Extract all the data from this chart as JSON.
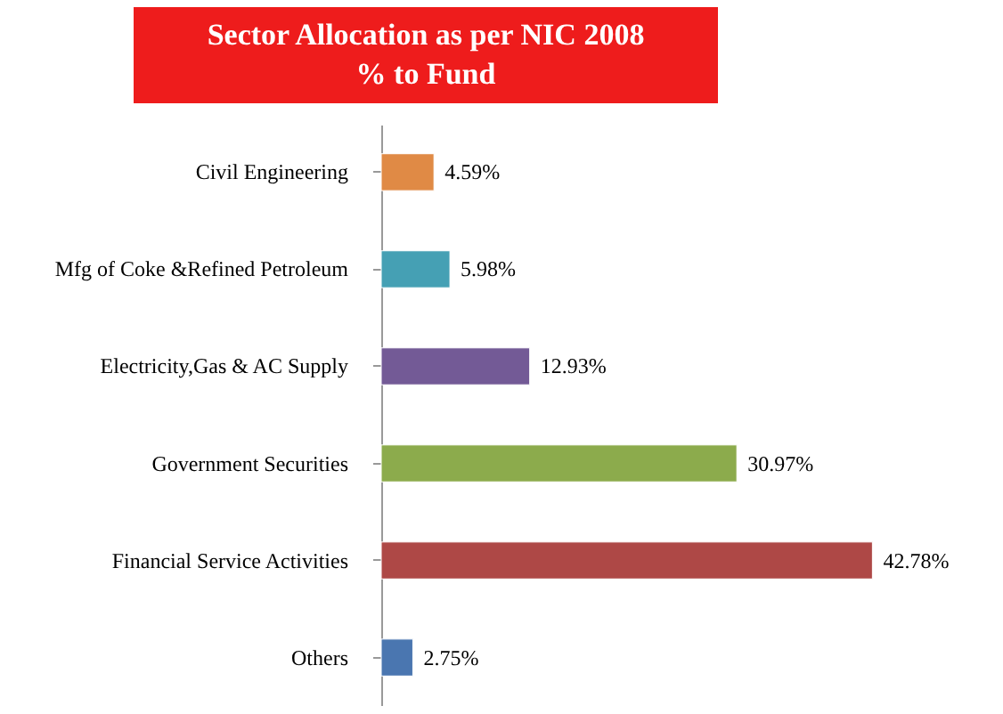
{
  "chart_data": {
    "type": "bar",
    "orientation": "horizontal",
    "title": "Sector Allocation as per NIC 2008\n% to Fund",
    "categories": [
      "Civil Engineering",
      "Mfg of Coke &Refined Petroleum",
      "Electricity,Gas & AC Supply",
      "Government Securities",
      "Financial Service Activities",
      "Others"
    ],
    "values": [
      4.59,
      5.98,
      12.93,
      30.97,
      42.78,
      2.75
    ],
    "colors": [
      "#e08a45",
      "#45a0b4",
      "#735a96",
      "#8cab4c",
      "#ae4846",
      "#4a76b0"
    ],
    "data_labels": true,
    "value_labels": [
      "4.59%",
      "5.98%",
      "12.93%",
      "30.97%",
      "42.78%",
      "2.75%"
    ],
    "grid": false
  }
}
